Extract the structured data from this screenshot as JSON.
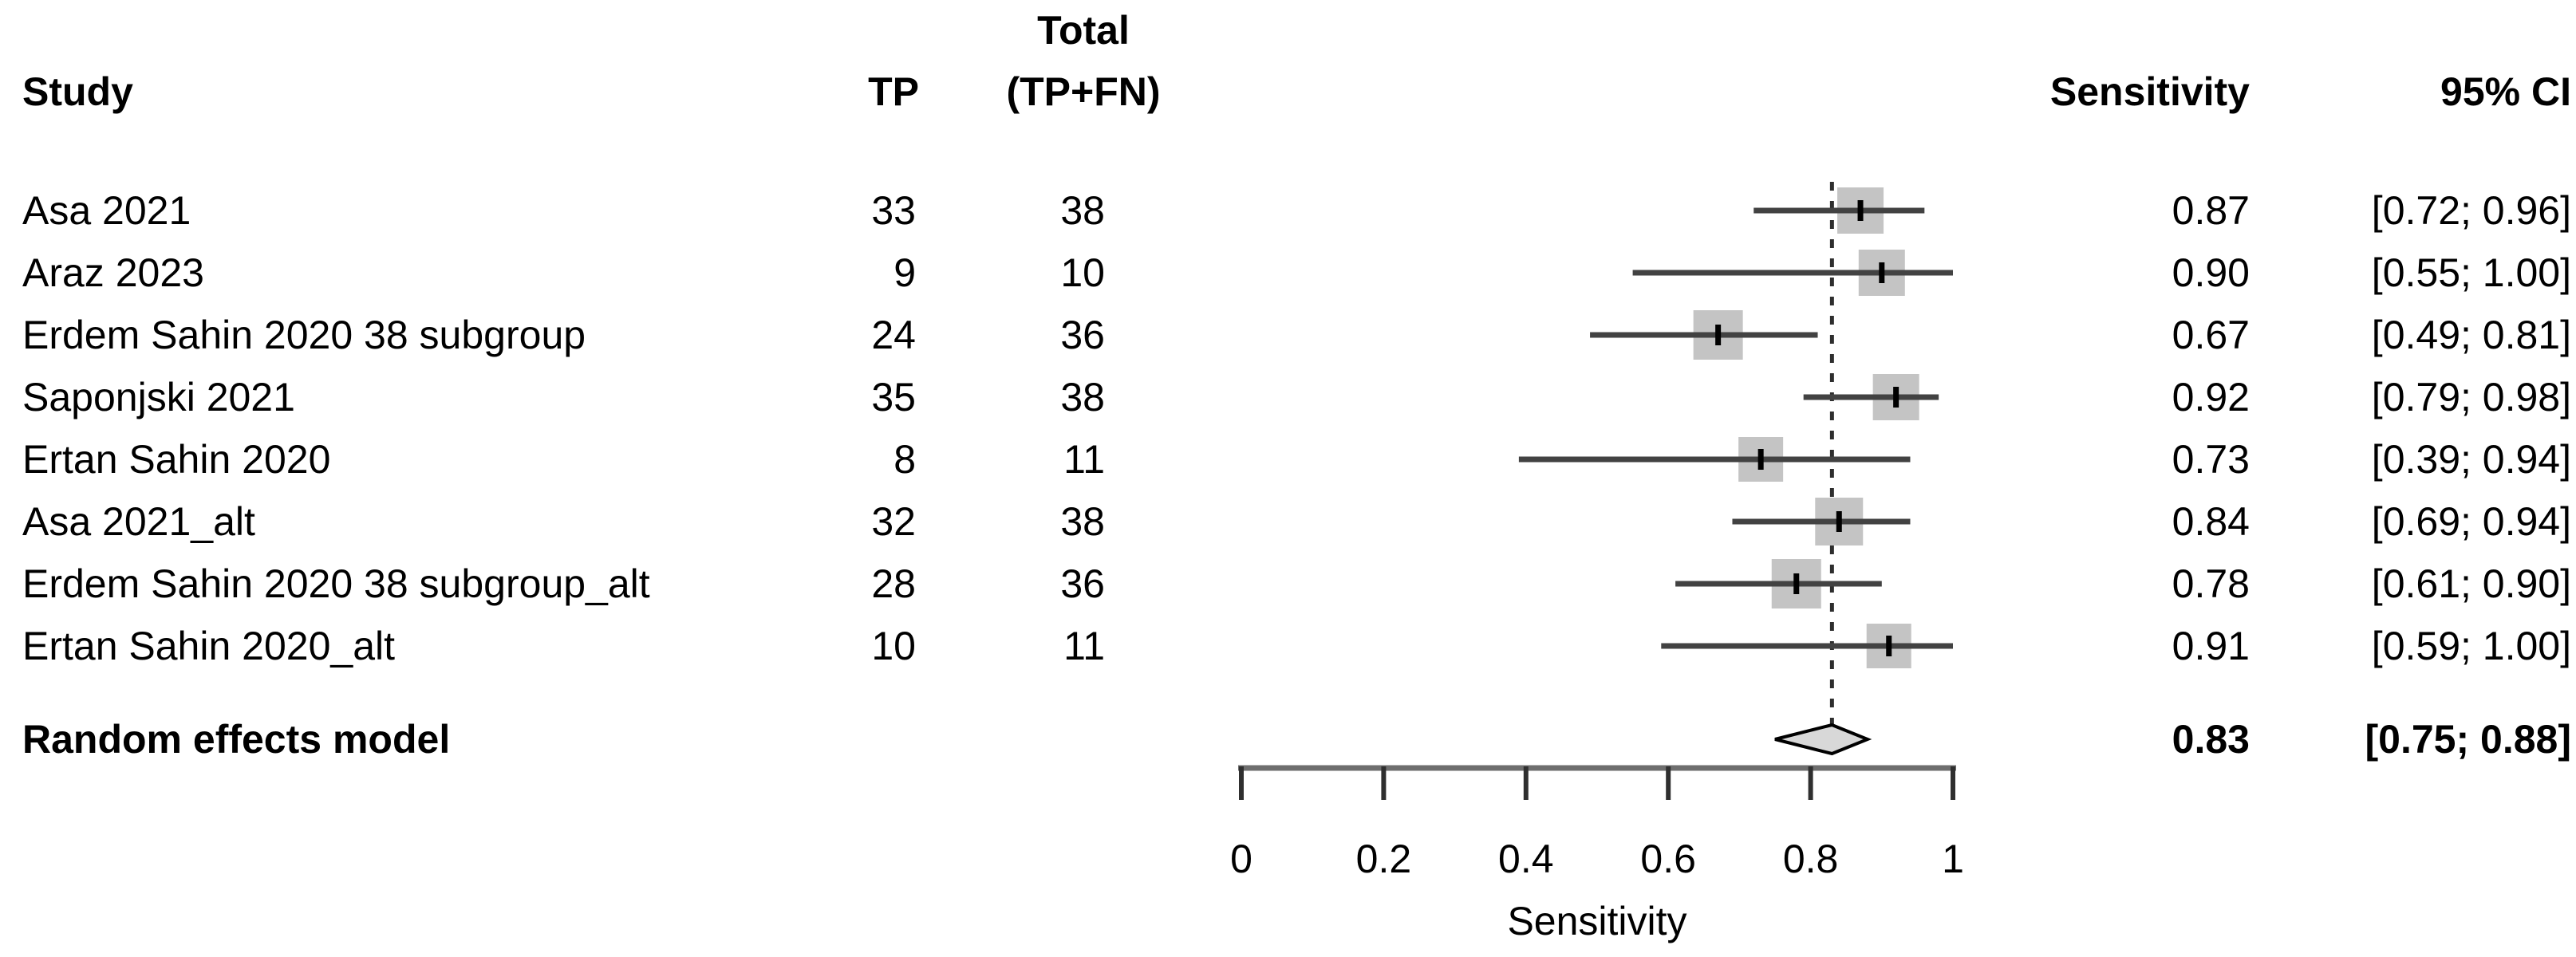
{
  "table": {
    "headers": {
      "study": "Study",
      "tp": "TP",
      "total_top": "Total",
      "total_bottom": "(TP+FN)",
      "sensitivity": "Sensitivity",
      "ci": "95% CI"
    },
    "rows": [
      {
        "study": "Asa 2021",
        "tp": "33",
        "total": "38",
        "sensitivity": "0.87",
        "ci": "[0.72; 0.96]"
      },
      {
        "study": "Araz 2023",
        "tp": "9",
        "total": "10",
        "sensitivity": "0.90",
        "ci": "[0.55; 1.00]"
      },
      {
        "study": "Erdem Sahin 2020 38 subgroup",
        "tp": "24",
        "total": "36",
        "sensitivity": "0.67",
        "ci": "[0.49; 0.81]"
      },
      {
        "study": "Saponjski 2021",
        "tp": "35",
        "total": "38",
        "sensitivity": "0.92",
        "ci": "[0.79; 0.98]"
      },
      {
        "study": "Ertan Sahin 2020",
        "tp": "8",
        "total": "11",
        "sensitivity": "0.73",
        "ci": "[0.39; 0.94]"
      },
      {
        "study": "Asa 2021_alt",
        "tp": "32",
        "total": "38",
        "sensitivity": "0.84",
        "ci": "[0.69; 0.94]"
      },
      {
        "study": "Erdem Sahin 2020 38 subgroup_alt",
        "tp": "28",
        "total": "36",
        "sensitivity": "0.78",
        "ci": "[0.61; 0.90]"
      },
      {
        "study": "Ertan Sahin 2020_alt",
        "tp": "10",
        "total": "11",
        "sensitivity": "0.91",
        "ci": "[0.59; 1.00]"
      }
    ],
    "summary": {
      "study": "Random effects model",
      "sensitivity": "0.83",
      "ci": "[0.75; 0.88]"
    }
  },
  "chart_data": {
    "type": "forest",
    "title": "",
    "xlabel": "Sensitivity",
    "xlim": [
      0,
      1
    ],
    "xticks": [
      0,
      0.2,
      0.4,
      0.6,
      0.8,
      1
    ],
    "xtick_labels": [
      "0",
      "0.2",
      "0.4",
      "0.6",
      "0.8",
      "1"
    ],
    "reference_line": 0.83,
    "studies": [
      "Asa 2021",
      "Araz 2023",
      "Erdem Sahin 2020 38 subgroup",
      "Saponjski 2021",
      "Ertan Sahin 2020",
      "Asa 2021_alt",
      "Erdem Sahin 2020 38 subgroup_alt",
      "Ertan Sahin 2020_alt"
    ],
    "tp": [
      33,
      9,
      24,
      35,
      8,
      32,
      28,
      10
    ],
    "total": [
      38,
      10,
      36,
      38,
      11,
      38,
      36,
      11
    ],
    "estimates": [
      0.87,
      0.9,
      0.67,
      0.92,
      0.73,
      0.84,
      0.78,
      0.91
    ],
    "ci_lower": [
      0.72,
      0.55,
      0.49,
      0.79,
      0.39,
      0.69,
      0.61,
      0.59
    ],
    "ci_upper": [
      0.96,
      1.0,
      0.81,
      0.98,
      0.94,
      0.94,
      0.9,
      1.0
    ],
    "square_sizes": [
      58,
      58,
      62,
      58,
      56,
      60,
      62,
      56
    ],
    "pooled": {
      "label": "Random effects model",
      "estimate": 0.83,
      "ci_lower": 0.75,
      "ci_upper": 0.88
    }
  },
  "colors": {
    "background": "#ffffff",
    "text": "#000000",
    "square": "#c4c4c4",
    "ci_line": "#424242",
    "point_tick": "#000000",
    "diamond_fill": "#d8d8d8",
    "diamond_stroke": "#000000",
    "axis_line": "#6e6e6e",
    "axis_tick": "#2f2f2f",
    "reference_line": "#2e2e2e"
  }
}
